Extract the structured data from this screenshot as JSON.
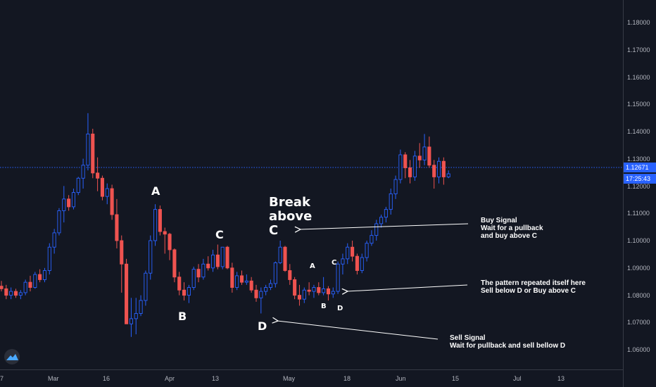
{
  "chart_data": {
    "type": "candlestick",
    "grid": false,
    "x_ticks": [
      "7",
      "Mar",
      "16",
      "Apr",
      "13",
      "May",
      "18",
      "Jun",
      "15",
      "Jul",
      "13"
    ],
    "y_ticks": [
      "1.18000",
      "1.17000",
      "1.16000",
      "1.15000",
      "1.14000",
      "1.13000",
      "1.12000",
      "1.11000",
      "1.10000",
      "1.09000",
      "1.08000",
      "1.07000",
      "1.06000"
    ],
    "ylim": [
      1.0515,
      1.1935
    ],
    "current_price": {
      "value": 1.12671,
      "price_label": "1.12671",
      "countdown_label": "17:25:43"
    },
    "colors": {
      "up": "#2962ff",
      "down": "#ef5350",
      "up_body": "#131722",
      "background": "#131722",
      "text": "#b2b5be",
      "price_line": "#2962ff"
    },
    "candles": [
      {
        "o": 1.0835,
        "h": 1.0855,
        "l": 1.0815,
        "c": 1.0825
      },
      {
        "o": 1.0825,
        "h": 1.084,
        "l": 1.0785,
        "c": 1.08
      },
      {
        "o": 1.08,
        "h": 1.083,
        "l": 1.0785,
        "c": 1.0815
      },
      {
        "o": 1.0815,
        "h": 1.0825,
        "l": 1.079,
        "c": 1.08
      },
      {
        "o": 1.08,
        "h": 1.082,
        "l": 1.0785,
        "c": 1.081
      },
      {
        "o": 1.081,
        "h": 1.086,
        "l": 1.08,
        "c": 1.085
      },
      {
        "o": 1.085,
        "h": 1.0875,
        "l": 1.0815,
        "c": 1.083
      },
      {
        "o": 1.083,
        "h": 1.089,
        "l": 1.0825,
        "c": 1.088
      },
      {
        "o": 1.088,
        "h": 1.09,
        "l": 1.085,
        "c": 1.086
      },
      {
        "o": 1.086,
        "h": 1.0905,
        "l": 1.085,
        "c": 1.0895
      },
      {
        "o": 1.0895,
        "h": 1.1,
        "l": 1.088,
        "c": 1.0985
      },
      {
        "o": 1.0985,
        "h": 1.1055,
        "l": 1.096,
        "c": 1.104
      },
      {
        "o": 1.104,
        "h": 1.1135,
        "l": 1.103,
        "c": 1.1125
      },
      {
        "o": 1.1125,
        "h": 1.122,
        "l": 1.108,
        "c": 1.117
      },
      {
        "o": 1.117,
        "h": 1.1185,
        "l": 1.1125,
        "c": 1.114
      },
      {
        "o": 1.114,
        "h": 1.121,
        "l": 1.113,
        "c": 1.1195
      },
      {
        "o": 1.1195,
        "h": 1.1255,
        "l": 1.1185,
        "c": 1.125
      },
      {
        "o": 1.125,
        "h": 1.1325,
        "l": 1.121,
        "c": 1.13
      },
      {
        "o": 1.13,
        "h": 1.15,
        "l": 1.128,
        "c": 1.142
      },
      {
        "o": 1.142,
        "h": 1.144,
        "l": 1.125,
        "c": 1.127
      },
      {
        "o": 1.127,
        "h": 1.133,
        "l": 1.12,
        "c": 1.125
      },
      {
        "o": 1.125,
        "h": 1.126,
        "l": 1.1165,
        "c": 1.118
      },
      {
        "o": 1.118,
        "h": 1.123,
        "l": 1.115,
        "c": 1.121
      },
      {
        "o": 1.121,
        "h": 1.1225,
        "l": 1.109,
        "c": 1.111
      },
      {
        "o": 1.111,
        "h": 1.117,
        "l": 1.098,
        "c": 1.101
      },
      {
        "o": 1.101,
        "h": 1.103,
        "l": 1.081,
        "c": 1.092
      },
      {
        "o": 1.092,
        "h": 1.094,
        "l": 1.069,
        "c": 1.069
      },
      {
        "o": 1.069,
        "h": 1.079,
        "l": 1.064,
        "c": 1.071
      },
      {
        "o": 1.071,
        "h": 1.079,
        "l": 1.065,
        "c": 1.073
      },
      {
        "o": 1.073,
        "h": 1.08,
        "l": 1.072,
        "c": 1.078
      },
      {
        "o": 1.078,
        "h": 1.0895,
        "l": 1.076,
        "c": 1.0885
      },
      {
        "o": 1.0885,
        "h": 1.103,
        "l": 1.086,
        "c": 1.101
      },
      {
        "o": 1.101,
        "h": 1.115,
        "l": 1.099,
        "c": 1.113
      },
      {
        "o": 1.113,
        "h": 1.1145,
        "l": 1.103,
        "c": 1.1045
      },
      {
        "o": 1.1045,
        "h": 1.106,
        "l": 1.096,
        "c": 1.1035
      },
      {
        "o": 1.1035,
        "h": 1.104,
        "l": 1.0935,
        "c": 1.0975
      },
      {
        "o": 1.0975,
        "h": 1.098,
        "l": 1.085,
        "c": 1.087
      },
      {
        "o": 1.087,
        "h": 1.089,
        "l": 1.08,
        "c": 1.082
      },
      {
        "o": 1.082,
        "h": 1.085,
        "l": 1.078,
        "c": 1.08
      },
      {
        "o": 1.08,
        "h": 1.084,
        "l": 1.077,
        "c": 1.083
      },
      {
        "o": 1.083,
        "h": 1.091,
        "l": 1.082,
        "c": 1.09
      },
      {
        "o": 1.09,
        "h": 1.092,
        "l": 1.085,
        "c": 1.087
      },
      {
        "o": 1.087,
        "h": 1.094,
        "l": 1.086,
        "c": 1.092
      },
      {
        "o": 1.092,
        "h": 1.095,
        "l": 1.0895,
        "c": 1.0905
      },
      {
        "o": 1.0905,
        "h": 1.0975,
        "l": 1.089,
        "c": 1.0955
      },
      {
        "o": 1.0955,
        "h": 1.0995,
        "l": 1.09,
        "c": 1.091
      },
      {
        "o": 1.091,
        "h": 1.0985,
        "l": 1.09,
        "c": 1.0985
      },
      {
        "o": 1.0985,
        "h": 1.099,
        "l": 1.09,
        "c": 1.0905
      },
      {
        "o": 1.0905,
        "h": 1.0925,
        "l": 1.081,
        "c": 1.083
      },
      {
        "o": 1.083,
        "h": 1.089,
        "l": 1.082,
        "c": 1.0875
      },
      {
        "o": 1.0875,
        "h": 1.0895,
        "l": 1.084,
        "c": 1.085
      },
      {
        "o": 1.085,
        "h": 1.088,
        "l": 1.084,
        "c": 1.0855
      },
      {
        "o": 1.0855,
        "h": 1.087,
        "l": 1.081,
        "c": 1.082
      },
      {
        "o": 1.082,
        "h": 1.084,
        "l": 1.0775,
        "c": 1.079
      },
      {
        "o": 1.079,
        "h": 1.083,
        "l": 1.073,
        "c": 1.0815
      },
      {
        "o": 1.0815,
        "h": 1.084,
        "l": 1.08,
        "c": 1.083
      },
      {
        "o": 1.083,
        "h": 1.086,
        "l": 1.082,
        "c": 1.0845
      },
      {
        "o": 1.0845,
        "h": 1.093,
        "l": 1.083,
        "c": 1.0925
      },
      {
        "o": 1.0925,
        "h": 1.101,
        "l": 1.092,
        "c": 1.0985
      },
      {
        "o": 1.0985,
        "h": 1.099,
        "l": 1.089,
        "c": 1.0895
      },
      {
        "o": 1.0895,
        "h": 1.092,
        "l": 1.084,
        "c": 1.086
      },
      {
        "o": 1.086,
        "h": 1.087,
        "l": 1.0785,
        "c": 1.08
      },
      {
        "o": 1.08,
        "h": 1.084,
        "l": 1.076,
        "c": 1.0785
      },
      {
        "o": 1.0785,
        "h": 1.083,
        "l": 1.077,
        "c": 1.082
      },
      {
        "o": 1.082,
        "h": 1.085,
        "l": 1.08,
        "c": 1.0815
      },
      {
        "o": 1.0815,
        "h": 1.084,
        "l": 1.079,
        "c": 1.083
      },
      {
        "o": 1.083,
        "h": 1.085,
        "l": 1.08,
        "c": 1.081
      },
      {
        "o": 1.081,
        "h": 1.087,
        "l": 1.08,
        "c": 1.0825
      },
      {
        "o": 1.0825,
        "h": 1.0835,
        "l": 1.078,
        "c": 1.0805
      },
      {
        "o": 1.0805,
        "h": 1.083,
        "l": 1.079,
        "c": 1.0815
      },
      {
        "o": 1.0815,
        "h": 1.093,
        "l": 1.0805,
        "c": 1.092
      },
      {
        "o": 1.092,
        "h": 1.096,
        "l": 1.088,
        "c": 1.094
      },
      {
        "o": 1.094,
        "h": 1.1,
        "l": 1.092,
        "c": 1.0985
      },
      {
        "o": 1.0985,
        "h": 1.101,
        "l": 1.093,
        "c": 1.095
      },
      {
        "o": 1.095,
        "h": 1.096,
        "l": 1.088,
        "c": 1.0895
      },
      {
        "o": 1.0895,
        "h": 1.096,
        "l": 1.0885,
        "c": 1.0945
      },
      {
        "o": 1.0945,
        "h": 1.101,
        "l": 1.093,
        "c": 1.1
      },
      {
        "o": 1.1,
        "h": 1.105,
        "l": 1.099,
        "c": 1.103
      },
      {
        "o": 1.103,
        "h": 1.109,
        "l": 1.101,
        "c": 1.1075
      },
      {
        "o": 1.1075,
        "h": 1.111,
        "l": 1.106,
        "c": 1.11
      },
      {
        "o": 1.11,
        "h": 1.114,
        "l": 1.108,
        "c": 1.113
      },
      {
        "o": 1.113,
        "h": 1.121,
        "l": 1.111,
        "c": 1.119
      },
      {
        "o": 1.119,
        "h": 1.126,
        "l": 1.117,
        "c": 1.1245
      },
      {
        "o": 1.1245,
        "h": 1.136,
        "l": 1.123,
        "c": 1.134
      },
      {
        "o": 1.134,
        "h": 1.135,
        "l": 1.125,
        "c": 1.129
      },
      {
        "o": 1.129,
        "h": 1.132,
        "l": 1.123,
        "c": 1.1255
      },
      {
        "o": 1.1255,
        "h": 1.1355,
        "l": 1.124,
        "c": 1.1335
      },
      {
        "o": 1.1335,
        "h": 1.1385,
        "l": 1.129,
        "c": 1.132
      },
      {
        "o": 1.132,
        "h": 1.142,
        "l": 1.13,
        "c": 1.137
      },
      {
        "o": 1.137,
        "h": 1.141,
        "l": 1.129,
        "c": 1.13
      },
      {
        "o": 1.13,
        "h": 1.132,
        "l": 1.121,
        "c": 1.1255
      },
      {
        "o": 1.1255,
        "h": 1.133,
        "l": 1.123,
        "c": 1.1315
      },
      {
        "o": 1.1315,
        "h": 1.133,
        "l": 1.1225,
        "c": 1.1255
      },
      {
        "o": 1.1255,
        "h": 1.128,
        "l": 1.125,
        "c": 1.1267
      }
    ],
    "annotations": {
      "a1": "A",
      "b1": "B",
      "c1": "C",
      "d1": "D",
      "break_line1": "Break",
      "break_line2": "above",
      "break_line3": "C",
      "a2": "A",
      "b2": "B",
      "c2": "C",
      "d2": "D"
    },
    "notes": {
      "buy_1": "Buy Signal",
      "buy_2": "Wait for a pullback",
      "buy_3": "and buy above C",
      "repeat_1": "The pattern repeated itself here",
      "repeat_2": "Sell below D or Buy above C",
      "sell_1": "Sell Signal",
      "sell_2": "Wait for pullback and sell bellow D"
    }
  }
}
